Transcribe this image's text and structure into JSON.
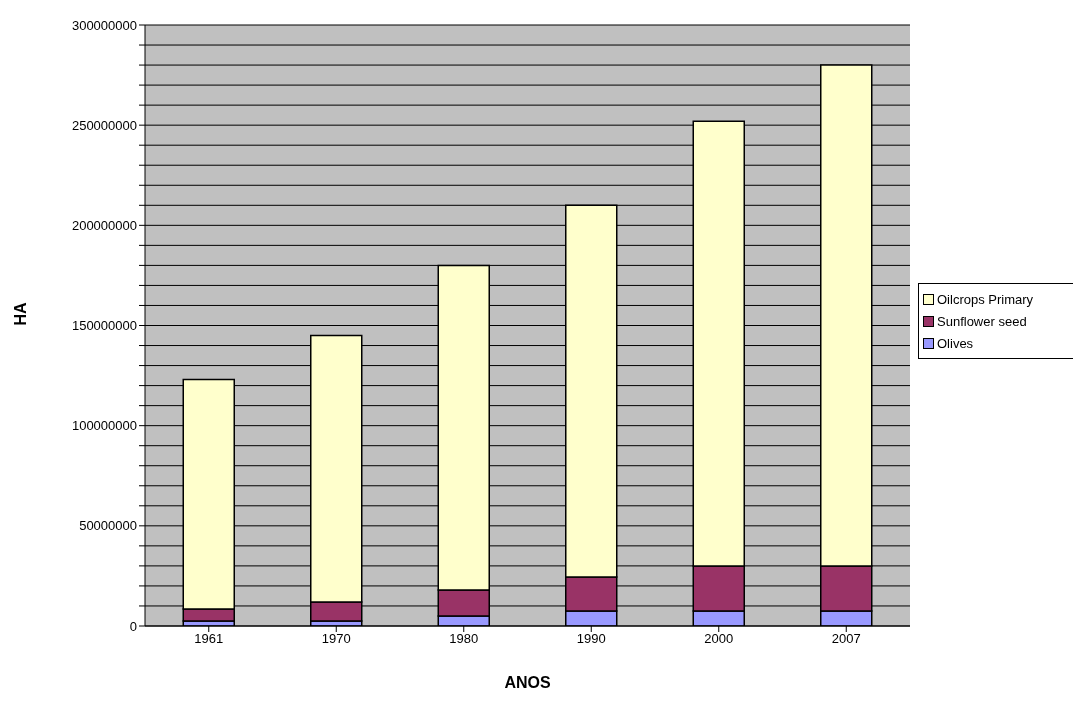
{
  "chart_data": {
    "type": "bar",
    "stacked": true,
    "xlabel": "ANOS",
    "ylabel": "HA",
    "categories": [
      "1961",
      "1970",
      "1980",
      "1990",
      "2000",
      "2007"
    ],
    "series": [
      {
        "name": "Olives",
        "color": "#9999ff",
        "values": [
          2500000,
          2500000,
          5000000,
          7500000,
          7500000,
          7500000
        ]
      },
      {
        "name": "Sunflower seed",
        "color": "#993366",
        "values": [
          6000000,
          9500000,
          13000000,
          17000000,
          22500000,
          22500000
        ]
      },
      {
        "name": "Oilcrops Primary",
        "color": "#ffffcc",
        "values": [
          114500000,
          133000000,
          162000000,
          185500000,
          222000000,
          250000000
        ]
      }
    ],
    "ylim": [
      0,
      300000000
    ],
    "yticks": [
      0,
      {
        "value": 10000000,
        "label": null
      },
      {
        "value": 20000000,
        "label": null
      },
      {
        "value": 30000000,
        "label": null
      },
      {
        "value": 40000000,
        "label": null
      },
      50000000,
      {
        "value": 60000000,
        "label": null
      },
      {
        "value": 70000000,
        "label": null
      },
      {
        "value": 80000000,
        "label": null
      },
      {
        "value": 90000000,
        "label": null
      },
      100000000,
      {
        "value": 110000000,
        "label": null
      },
      {
        "value": 120000000,
        "label": null
      },
      {
        "value": 130000000,
        "label": null
      },
      {
        "value": 140000000,
        "label": null
      },
      150000000,
      {
        "value": 160000000,
        "label": null
      },
      {
        "value": 170000000,
        "label": null
      },
      {
        "value": 180000000,
        "label": null
      },
      {
        "value": 190000000,
        "label": null
      },
      200000000,
      {
        "value": 210000000,
        "label": null
      },
      {
        "value": 220000000,
        "label": null
      },
      {
        "value": 230000000,
        "label": null
      },
      {
        "value": 240000000,
        "label": null
      },
      250000000,
      {
        "value": 260000000,
        "label": null
      },
      {
        "value": 270000000,
        "label": null
      },
      {
        "value": 280000000,
        "label": null
      },
      {
        "value": 290000000,
        "label": null
      },
      300000000
    ],
    "grid": "y",
    "legend": "right"
  }
}
